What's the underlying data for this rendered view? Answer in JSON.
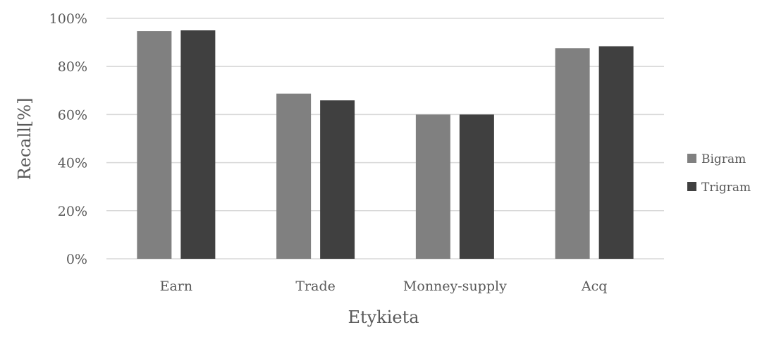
{
  "chart_data": {
    "type": "bar",
    "title": "",
    "xlabel": "Etykieta",
    "ylabel": "Recall[%]",
    "categories": [
      "Earn",
      "Trade",
      "Monney-supply",
      "Acq"
    ],
    "series": [
      {
        "name": "Bigram",
        "values": [
          94.7,
          68.7,
          60.0,
          87.6
        ],
        "color": "#808080"
      },
      {
        "name": "Trigram",
        "values": [
          95.0,
          65.9,
          60.0,
          88.4
        ],
        "color": "#404040"
      }
    ],
    "ylim": [
      0,
      100
    ],
    "yticks": [
      "0%",
      "20%",
      "40%",
      "60%",
      "80%",
      "100%"
    ],
    "ytick_values": [
      0,
      20,
      40,
      60,
      80,
      100
    ],
    "grid": true,
    "gridline_color": "#d9d9d9",
    "legend_position": "right"
  }
}
